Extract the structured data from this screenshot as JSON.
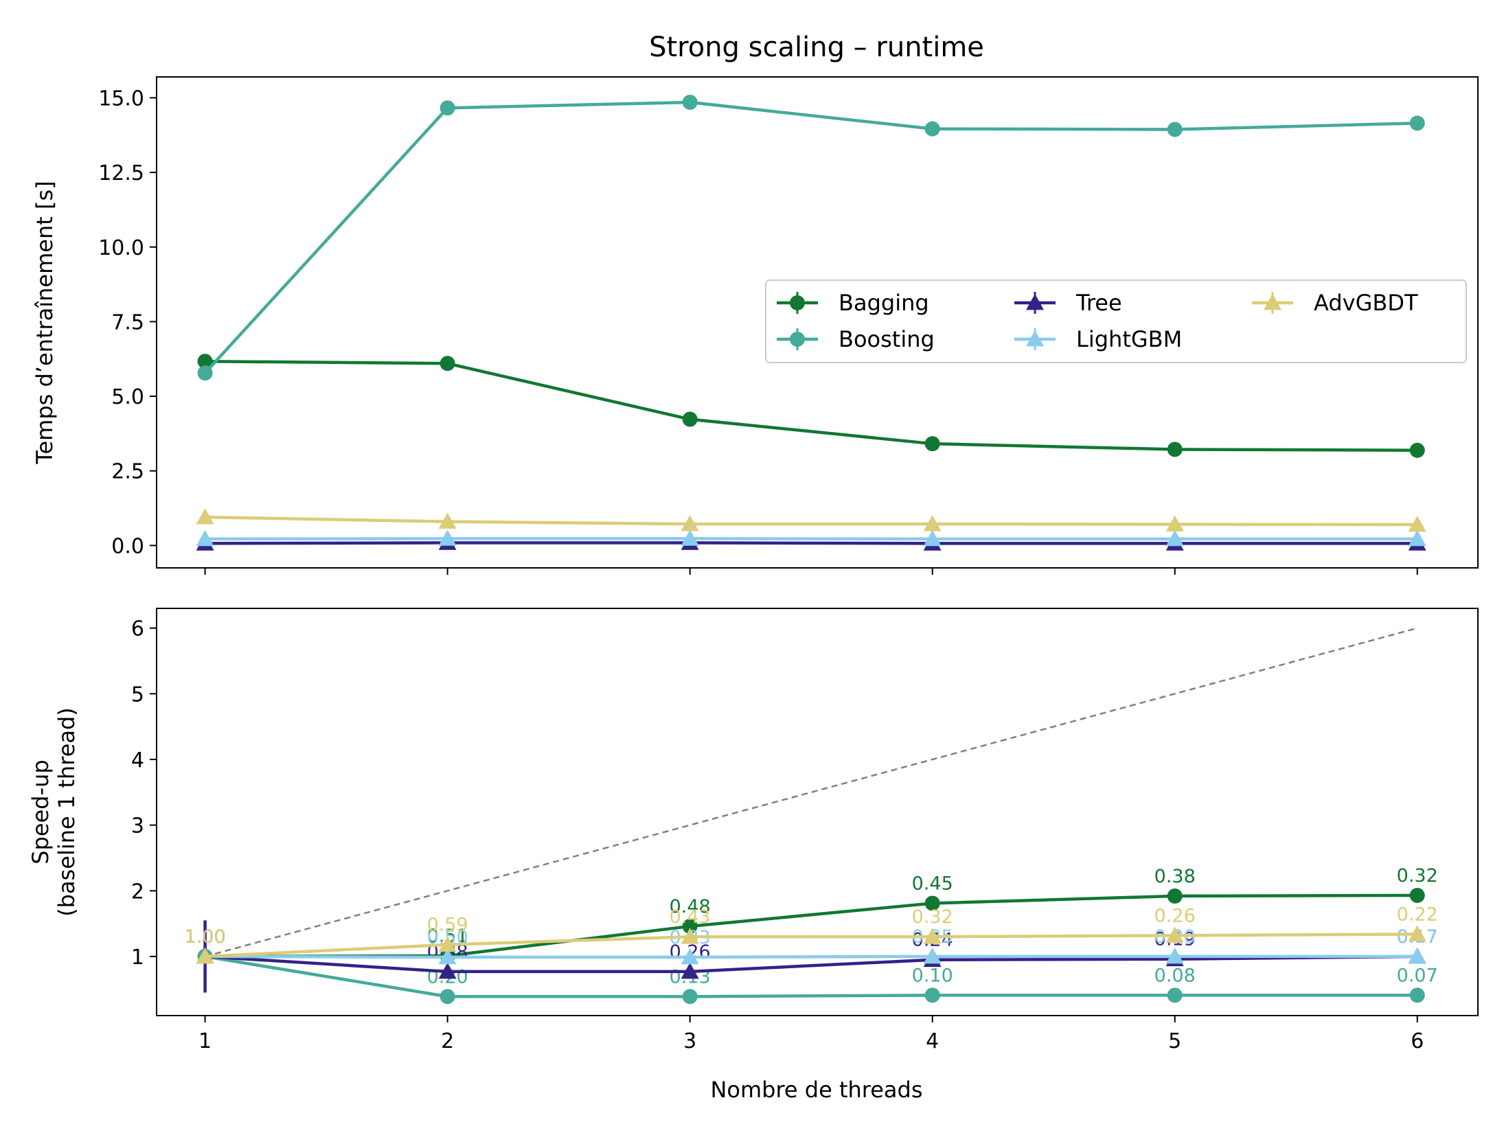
{
  "chart_data": [
    {
      "type": "line",
      "title": "Strong scaling – runtime",
      "xlabel": "",
      "ylabel": "Temps d’entraînement [s]",
      "x": [
        1,
        2,
        3,
        4,
        5,
        6
      ],
      "xlim": [
        0.8,
        6.25
      ],
      "ylim": [
        -0.75,
        15.7
      ],
      "yticks": [
        "0.0",
        "2.5",
        "5.0",
        "7.5",
        "10.0",
        "12.5",
        "15.0"
      ],
      "legend": {
        "placement": "center-right",
        "columns": 3
      },
      "series": [
        {
          "name": "Bagging",
          "color": "#117733",
          "marker": "circle",
          "values": [
            6.17,
            6.1,
            4.23,
            3.41,
            3.22,
            3.19
          ]
        },
        {
          "name": "Boosting",
          "color": "#44AA99",
          "marker": "circle",
          "values": [
            5.78,
            14.66,
            14.85,
            13.96,
            13.94,
            14.15
          ]
        },
        {
          "name": "Tree",
          "color": "#332288",
          "marker": "triangle",
          "values": [
            0.07,
            0.09,
            0.09,
            0.07,
            0.07,
            0.07
          ]
        },
        {
          "name": "LightGBM",
          "color": "#88CCEE",
          "marker": "triangle",
          "values": [
            0.22,
            0.23,
            0.23,
            0.22,
            0.22,
            0.22
          ]
        },
        {
          "name": "AdvGBDT",
          "color": "#DDCC77",
          "marker": "triangle",
          "values": [
            0.95,
            0.8,
            0.72,
            0.72,
            0.71,
            0.7
          ]
        }
      ]
    },
    {
      "type": "line",
      "title": "",
      "xlabel": "Nombre de threads",
      "ylabel": "Speed-up\n(baseline 1 thread)",
      "x": [
        1,
        2,
        3,
        4,
        5,
        6
      ],
      "xlim": [
        0.8,
        6.25
      ],
      "ylim": [
        0.1,
        6.3
      ],
      "xticks": [
        "1",
        "2",
        "3",
        "4",
        "5",
        "6"
      ],
      "yticks": [
        "1",
        "2",
        "3",
        "4",
        "5",
        "6"
      ],
      "ideal": {
        "x": [
          1,
          6
        ],
        "y": [
          1,
          6
        ],
        "color": "#808080",
        "style": "dashed"
      },
      "series": [
        {
          "name": "Bagging",
          "color": "#117733",
          "marker": "circle",
          "values": [
            1.0,
            1.01,
            1.46,
            1.81,
            1.92,
            1.93
          ],
          "labels": [
            "1.00",
            "0.51",
            "0.48",
            "0.45",
            "0.38",
            "0.32"
          ]
        },
        {
          "name": "Boosting",
          "color": "#44AA99",
          "marker": "circle",
          "values": [
            1.0,
            0.39,
            0.39,
            0.41,
            0.41,
            0.41
          ],
          "labels": [
            "1.00",
            "0.20",
            "0.13",
            "0.10",
            "0.08",
            "0.07"
          ]
        },
        {
          "name": "Tree",
          "color": "#332288",
          "marker": "triangle",
          "values": [
            1.0,
            0.77,
            0.77,
            0.95,
            0.96,
            1.0
          ],
          "labels": [
            "1.00",
            "0.38",
            "0.26",
            "0.24",
            "0.19",
            "0.17"
          ],
          "errorbar": {
            "x": 1,
            "low": 0.45,
            "high": 1.55
          }
        },
        {
          "name": "LightGBM",
          "color": "#88CCEE",
          "marker": "triangle",
          "values": [
            1.0,
            0.99,
            0.99,
            1.0,
            1.0,
            1.0
          ],
          "labels": [
            "1.00",
            "0.50",
            "0.33",
            "0.25",
            "0.20",
            "0.17"
          ]
        },
        {
          "name": "AdvGBDT",
          "color": "#DDCC77",
          "marker": "triangle",
          "values": [
            1.0,
            1.18,
            1.3,
            1.3,
            1.32,
            1.34
          ],
          "labels": [
            "1.00",
            "0.59",
            "0.43",
            "0.32",
            "0.26",
            "0.22"
          ]
        }
      ]
    }
  ]
}
